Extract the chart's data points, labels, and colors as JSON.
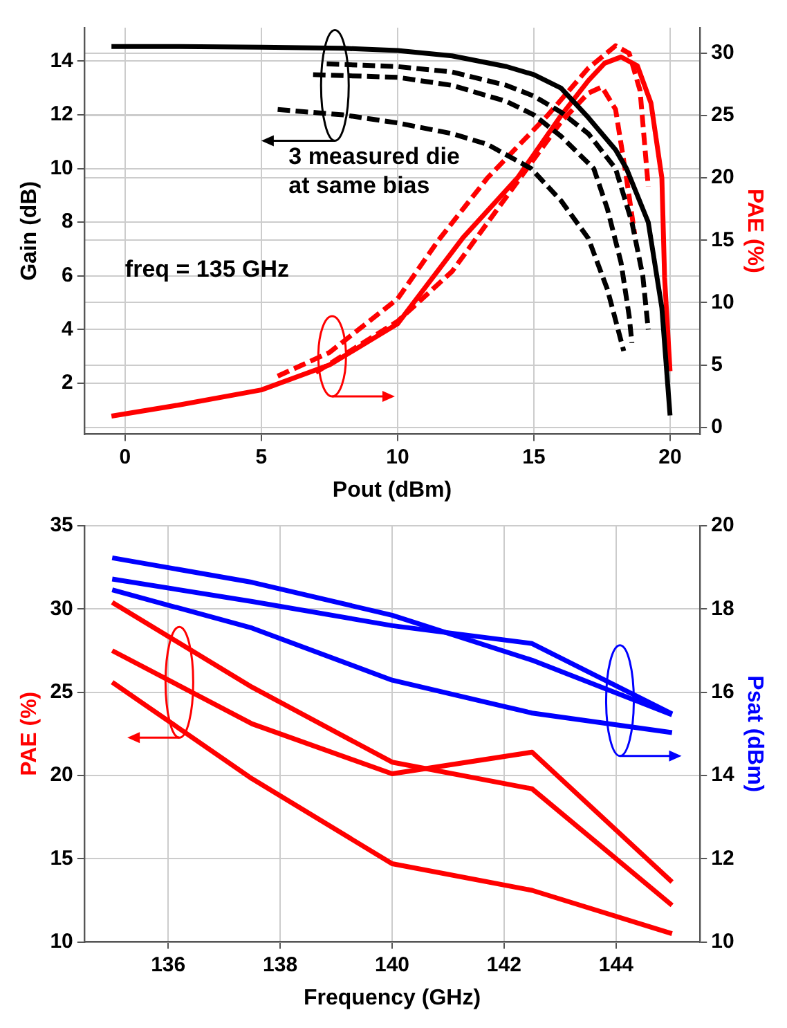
{
  "chart_data": [
    {
      "type": "line",
      "xlabel": "Pout (dBm)",
      "ylabel": "Gain (dB)",
      "y2label": "PAE (%)",
      "xlim": [
        -1.5,
        21.1
      ],
      "ylim": [
        0.1,
        15.25
      ],
      "y2lim": [
        -0.55,
        32.05
      ],
      "xticks": [
        0,
        5,
        10,
        15,
        20
      ],
      "yticks": [
        2,
        4,
        6,
        8,
        10,
        12,
        14
      ],
      "y2ticks": [
        0,
        5,
        10,
        15,
        20,
        25,
        30
      ],
      "grid": true,
      "legend": false,
      "annotations": [
        "3 measured die\nat same bias",
        "freq = 135 GHz"
      ],
      "series": [
        {
          "color": "#000000",
          "line_style": "solid",
          "x": [
            -0.5,
            2,
            5,
            8,
            10,
            12,
            14,
            15,
            16,
            17,
            18,
            18.4,
            19.2,
            19.7,
            20
          ],
          "values": [
            14.55,
            14.55,
            14.52,
            14.48,
            14.4,
            14.2,
            13.8,
            13.5,
            13.0,
            11.9,
            10.7,
            10,
            8,
            4.8,
            0.8
          ]
        },
        {
          "color": "#000000",
          "line_style": "dashed",
          "x": [
            7.4,
            10,
            12,
            14,
            15,
            16,
            17,
            18,
            18.6,
            19,
            19.2
          ],
          "values": [
            13.9,
            13.8,
            13.6,
            13.1,
            12.7,
            12.1,
            11.3,
            10,
            8,
            6,
            4
          ]
        },
        {
          "color": "#000000",
          "line_style": "dashed",
          "x": [
            6.9,
            10,
            12,
            14,
            15,
            16,
            17.2,
            17.7,
            18.2,
            18.5,
            18.6
          ],
          "values": [
            13.5,
            13.4,
            13.1,
            12.5,
            12.0,
            11.2,
            10,
            8.5,
            6.5,
            4.5,
            3.5
          ]
        },
        {
          "color": "#000000",
          "line_style": "dashed",
          "x": [
            5.6,
            8,
            10,
            12,
            13.3,
            14.9,
            16,
            17,
            17.7,
            18.3
          ],
          "values": [
            12.2,
            12.0,
            11.7,
            11.3,
            10.9,
            10.0,
            8.8,
            7.4,
            5.5,
            3.2
          ]
        },
        {
          "color": "#ff0000",
          "line_style": "solid",
          "axis": "y2",
          "x": [
            -0.5,
            2,
            5,
            7.5,
            10,
            12.4,
            14.4,
            16,
            17,
            17.6,
            18.2,
            18.8,
            19.3,
            19.7,
            19.8,
            20
          ],
          "values": [
            0.9,
            1.8,
            3.0,
            5.0,
            8.3,
            15.2,
            20,
            25,
            27.8,
            29.2,
            29.7,
            29,
            26,
            20,
            12,
            4.5
          ]
        },
        {
          "color": "#ff0000",
          "line_style": "dashed",
          "axis": "y2",
          "x": [
            5.6,
            7.5,
            10,
            11.5,
            13.3,
            15.5,
            17,
            18,
            18.5,
            18.9,
            19.2
          ],
          "values": [
            4.1,
            6.0,
            10.3,
            15,
            20,
            25,
            28.8,
            30.6,
            30,
            27,
            19.3
          ]
        },
        {
          "color": "#ff0000",
          "line_style": "dashed",
          "axis": "y2",
          "x": [
            7,
            10,
            12,
            14,
            16,
            17,
            17.5,
            18,
            18.4,
            18.7
          ],
          "values": [
            4.4,
            8.5,
            12.5,
            18.5,
            24.5,
            26.8,
            27.3,
            25.5,
            20,
            15.5
          ]
        }
      ]
    },
    {
      "type": "line",
      "xlabel": "Frequency (GHz)",
      "ylabel": "PAE (%)",
      "y2label": "Psat (dBm)",
      "x": [
        135,
        137.5,
        140,
        142.5,
        145
      ],
      "xlim": [
        134.5,
        145.5
      ],
      "ylim": [
        10,
        35
      ],
      "y2lim": [
        10,
        20
      ],
      "xticks": [
        136,
        138,
        140,
        142,
        144
      ],
      "yticks": [
        10,
        15,
        20,
        25,
        30,
        35
      ],
      "y2ticks": [
        10,
        12,
        14,
        16,
        18,
        20
      ],
      "grid": true,
      "legend": false,
      "series": [
        {
          "color": "#ff0000",
          "line_style": "solid",
          "values": [
            30.4,
            25.3,
            20.8,
            19.2,
            12.2
          ]
        },
        {
          "color": "#ff0000",
          "line_style": "solid",
          "values": [
            27.5,
            23.1,
            20.1,
            21.4,
            13.6
          ]
        },
        {
          "color": "#ff0000",
          "line_style": "solid",
          "values": [
            25.6,
            19.8,
            14.7,
            13.1,
            10.5
          ]
        },
        {
          "color": "#0000ff",
          "line_style": "solid",
          "axis": "y2",
          "values": [
            19.23,
            18.64,
            17.85,
            16.77,
            15.46
          ]
        },
        {
          "color": "#0000ff",
          "line_style": "solid",
          "axis": "y2",
          "values": [
            18.72,
            18.18,
            17.6,
            17.17,
            15.48
          ]
        },
        {
          "color": "#0000ff",
          "line_style": "solid",
          "axis": "y2",
          "values": [
            18.46,
            17.54,
            16.29,
            15.5,
            15.03
          ]
        }
      ]
    }
  ]
}
